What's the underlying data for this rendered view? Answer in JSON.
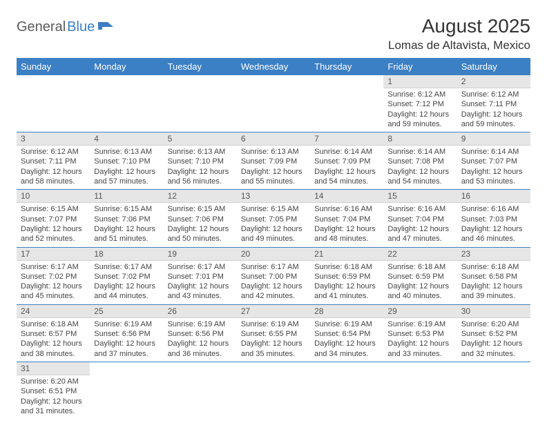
{
  "logo": {
    "part1": "General",
    "part2": "Blue"
  },
  "header": {
    "title": "August 2025",
    "location": "Lomas de Altavista, Mexico"
  },
  "style": {
    "accent": "#3b7fc4",
    "daynum_bg": "#e6e6e6",
    "text": "#444444",
    "header_text": "#ffffff"
  },
  "weekdays": [
    "Sunday",
    "Monday",
    "Tuesday",
    "Wednesday",
    "Thursday",
    "Friday",
    "Saturday"
  ],
  "weeks": [
    [
      null,
      null,
      null,
      null,
      null,
      {
        "n": "1",
        "sr": "Sunrise: 6:12 AM",
        "ss": "Sunset: 7:12 PM",
        "dl": "Daylight: 12 hours and 59 minutes."
      },
      {
        "n": "2",
        "sr": "Sunrise: 6:12 AM",
        "ss": "Sunset: 7:11 PM",
        "dl": "Daylight: 12 hours and 59 minutes."
      }
    ],
    [
      {
        "n": "3",
        "sr": "Sunrise: 6:12 AM",
        "ss": "Sunset: 7:11 PM",
        "dl": "Daylight: 12 hours and 58 minutes."
      },
      {
        "n": "4",
        "sr": "Sunrise: 6:13 AM",
        "ss": "Sunset: 7:10 PM",
        "dl": "Daylight: 12 hours and 57 minutes."
      },
      {
        "n": "5",
        "sr": "Sunrise: 6:13 AM",
        "ss": "Sunset: 7:10 PM",
        "dl": "Daylight: 12 hours and 56 minutes."
      },
      {
        "n": "6",
        "sr": "Sunrise: 6:13 AM",
        "ss": "Sunset: 7:09 PM",
        "dl": "Daylight: 12 hours and 55 minutes."
      },
      {
        "n": "7",
        "sr": "Sunrise: 6:14 AM",
        "ss": "Sunset: 7:09 PM",
        "dl": "Daylight: 12 hours and 54 minutes."
      },
      {
        "n": "8",
        "sr": "Sunrise: 6:14 AM",
        "ss": "Sunset: 7:08 PM",
        "dl": "Daylight: 12 hours and 54 minutes."
      },
      {
        "n": "9",
        "sr": "Sunrise: 6:14 AM",
        "ss": "Sunset: 7:07 PM",
        "dl": "Daylight: 12 hours and 53 minutes."
      }
    ],
    [
      {
        "n": "10",
        "sr": "Sunrise: 6:15 AM",
        "ss": "Sunset: 7:07 PM",
        "dl": "Daylight: 12 hours and 52 minutes."
      },
      {
        "n": "11",
        "sr": "Sunrise: 6:15 AM",
        "ss": "Sunset: 7:06 PM",
        "dl": "Daylight: 12 hours and 51 minutes."
      },
      {
        "n": "12",
        "sr": "Sunrise: 6:15 AM",
        "ss": "Sunset: 7:06 PM",
        "dl": "Daylight: 12 hours and 50 minutes."
      },
      {
        "n": "13",
        "sr": "Sunrise: 6:15 AM",
        "ss": "Sunset: 7:05 PM",
        "dl": "Daylight: 12 hours and 49 minutes."
      },
      {
        "n": "14",
        "sr": "Sunrise: 6:16 AM",
        "ss": "Sunset: 7:04 PM",
        "dl": "Daylight: 12 hours and 48 minutes."
      },
      {
        "n": "15",
        "sr": "Sunrise: 6:16 AM",
        "ss": "Sunset: 7:04 PM",
        "dl": "Daylight: 12 hours and 47 minutes."
      },
      {
        "n": "16",
        "sr": "Sunrise: 6:16 AM",
        "ss": "Sunset: 7:03 PM",
        "dl": "Daylight: 12 hours and 46 minutes."
      }
    ],
    [
      {
        "n": "17",
        "sr": "Sunrise: 6:17 AM",
        "ss": "Sunset: 7:02 PM",
        "dl": "Daylight: 12 hours and 45 minutes."
      },
      {
        "n": "18",
        "sr": "Sunrise: 6:17 AM",
        "ss": "Sunset: 7:02 PM",
        "dl": "Daylight: 12 hours and 44 minutes."
      },
      {
        "n": "19",
        "sr": "Sunrise: 6:17 AM",
        "ss": "Sunset: 7:01 PM",
        "dl": "Daylight: 12 hours and 43 minutes."
      },
      {
        "n": "20",
        "sr": "Sunrise: 6:17 AM",
        "ss": "Sunset: 7:00 PM",
        "dl": "Daylight: 12 hours and 42 minutes."
      },
      {
        "n": "21",
        "sr": "Sunrise: 6:18 AM",
        "ss": "Sunset: 6:59 PM",
        "dl": "Daylight: 12 hours and 41 minutes."
      },
      {
        "n": "22",
        "sr": "Sunrise: 6:18 AM",
        "ss": "Sunset: 6:59 PM",
        "dl": "Daylight: 12 hours and 40 minutes."
      },
      {
        "n": "23",
        "sr": "Sunrise: 6:18 AM",
        "ss": "Sunset: 6:58 PM",
        "dl": "Daylight: 12 hours and 39 minutes."
      }
    ],
    [
      {
        "n": "24",
        "sr": "Sunrise: 6:18 AM",
        "ss": "Sunset: 6:57 PM",
        "dl": "Daylight: 12 hours and 38 minutes."
      },
      {
        "n": "25",
        "sr": "Sunrise: 6:19 AM",
        "ss": "Sunset: 6:56 PM",
        "dl": "Daylight: 12 hours and 37 minutes."
      },
      {
        "n": "26",
        "sr": "Sunrise: 6:19 AM",
        "ss": "Sunset: 6:56 PM",
        "dl": "Daylight: 12 hours and 36 minutes."
      },
      {
        "n": "27",
        "sr": "Sunrise: 6:19 AM",
        "ss": "Sunset: 6:55 PM",
        "dl": "Daylight: 12 hours and 35 minutes."
      },
      {
        "n": "28",
        "sr": "Sunrise: 6:19 AM",
        "ss": "Sunset: 6:54 PM",
        "dl": "Daylight: 12 hours and 34 minutes."
      },
      {
        "n": "29",
        "sr": "Sunrise: 6:19 AM",
        "ss": "Sunset: 6:53 PM",
        "dl": "Daylight: 12 hours and 33 minutes."
      },
      {
        "n": "30",
        "sr": "Sunrise: 6:20 AM",
        "ss": "Sunset: 6:52 PM",
        "dl": "Daylight: 12 hours and 32 minutes."
      }
    ],
    [
      {
        "n": "31",
        "sr": "Sunrise: 6:20 AM",
        "ss": "Sunset: 6:51 PM",
        "dl": "Daylight: 12 hours and 31 minutes."
      },
      null,
      null,
      null,
      null,
      null,
      null
    ]
  ]
}
